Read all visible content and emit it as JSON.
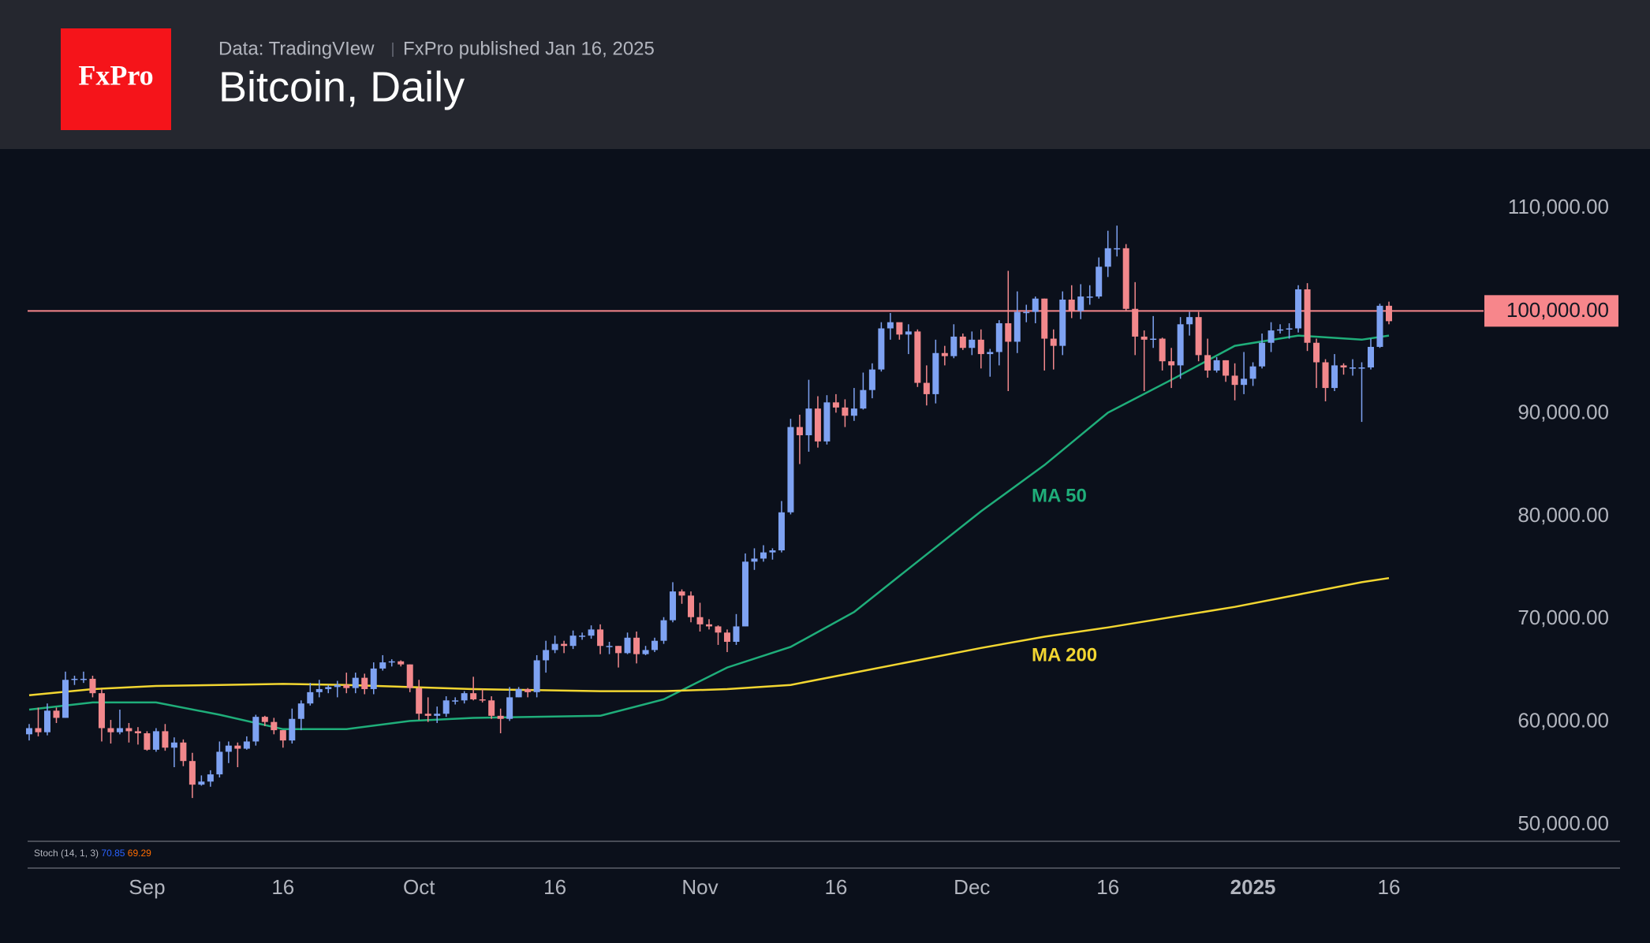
{
  "header": {
    "logo": "FxPro",
    "source": "Data: TradingVIew",
    "published": "FxPro published Jan 16, 2025",
    "title": "Bitcoin, Daily"
  },
  "chart_data": {
    "type": "candlestick",
    "up_color": "#7ea2f2",
    "down_color": "#f2888c",
    "x": [
      "2024-08-19",
      "2024-08-20",
      "2024-08-21",
      "2024-08-22",
      "2024-08-23",
      "2024-08-24",
      "2024-08-25",
      "2024-08-26",
      "2024-08-27",
      "2024-08-28",
      "2024-08-29",
      "2024-08-30",
      "2024-08-31",
      "2024-09-01",
      "2024-09-02",
      "2024-09-03",
      "2024-09-04",
      "2024-09-05",
      "2024-09-06",
      "2024-09-07",
      "2024-09-08",
      "2024-09-09",
      "2024-09-10",
      "2024-09-11",
      "2024-09-12",
      "2024-09-13",
      "2024-09-14",
      "2024-09-15",
      "2024-09-16",
      "2024-09-17",
      "2024-09-18",
      "2024-09-19",
      "2024-09-20",
      "2024-09-21",
      "2024-09-22",
      "2024-09-23",
      "2024-09-24",
      "2024-09-25",
      "2024-09-26",
      "2024-09-27",
      "2024-09-28",
      "2024-09-29",
      "2024-09-30",
      "2024-10-01",
      "2024-10-02",
      "2024-10-03",
      "2024-10-04",
      "2024-10-05",
      "2024-10-06",
      "2024-10-07",
      "2024-10-08",
      "2024-10-09",
      "2024-10-10",
      "2024-10-11",
      "2024-10-12",
      "2024-10-13",
      "2024-10-14",
      "2024-10-15",
      "2024-10-16",
      "2024-10-17",
      "2024-10-18",
      "2024-10-19",
      "2024-10-20",
      "2024-10-21",
      "2024-10-22",
      "2024-10-23",
      "2024-10-24",
      "2024-10-25",
      "2024-10-26",
      "2024-10-27",
      "2024-10-28",
      "2024-10-29",
      "2024-10-30",
      "2024-10-31",
      "2024-11-01",
      "2024-11-02",
      "2024-11-03",
      "2024-11-04",
      "2024-11-05",
      "2024-11-06",
      "2024-11-07",
      "2024-11-08",
      "2024-11-09",
      "2024-11-10",
      "2024-11-11",
      "2024-11-12",
      "2024-11-13",
      "2024-11-14",
      "2024-11-15",
      "2024-11-16",
      "2024-11-17",
      "2024-11-18",
      "2024-11-19",
      "2024-11-20",
      "2024-11-21",
      "2024-11-22",
      "2024-11-23",
      "2024-11-24",
      "2024-11-25",
      "2024-11-26",
      "2024-11-27",
      "2024-11-28",
      "2024-11-29",
      "2024-11-30",
      "2024-12-01",
      "2024-12-02",
      "2024-12-03",
      "2024-12-04",
      "2024-12-05",
      "2024-12-06",
      "2024-12-07",
      "2024-12-08",
      "2024-12-09",
      "2024-12-10",
      "2024-12-11",
      "2024-12-12",
      "2024-12-13",
      "2024-12-14",
      "2024-12-15",
      "2024-12-16",
      "2024-12-17",
      "2024-12-18",
      "2024-12-19",
      "2024-12-20",
      "2024-12-21",
      "2024-12-22",
      "2024-12-23",
      "2024-12-24",
      "2024-12-25",
      "2024-12-26",
      "2024-12-27",
      "2024-12-28",
      "2024-12-29",
      "2024-12-30",
      "2024-12-31",
      "2025-01-01",
      "2025-01-02",
      "2025-01-03",
      "2025-01-04",
      "2025-01-05",
      "2025-01-06",
      "2025-01-07",
      "2025-01-08",
      "2025-01-09",
      "2025-01-10",
      "2025-01-11",
      "2025-01-12",
      "2025-01-13",
      "2025-01-14",
      "2025-01-15",
      "2025-01-16"
    ],
    "open": [
      58800,
      59400,
      59000,
      61100,
      60400,
      64100,
      64200,
      64200,
      62800,
      59400,
      59000,
      59400,
      59100,
      58900,
      57300,
      59100,
      57500,
      58000,
      56200,
      53900,
      54200,
      54900,
      57100,
      57700,
      57400,
      58100,
      60500,
      60000,
      59200,
      58200,
      60300,
      61800,
      62900,
      63200,
      63400,
      63600,
      63300,
      64300,
      63200,
      65200,
      65800,
      65900,
      65600,
      63300,
      60800,
      60600,
      60800,
      62100,
      62100,
      62800,
      62200,
      62100,
      60600,
      60300,
      62400,
      63200,
      62900,
      66000,
      67000,
      67600,
      67400,
      68400,
      68400,
      69000,
      67400,
      67400,
      66700,
      68200,
      66600,
      67000,
      67900,
      69900,
      72700,
      72300,
      70200,
      69500,
      69300,
      68700,
      67800,
      69300,
      75600,
      75900,
      76500,
      76700,
      80400,
      88700,
      87900,
      90500,
      87300,
      91100,
      90600,
      89800,
      90500,
      92300,
      94300,
      98300,
      98900,
      97700,
      98000,
      93000,
      91900,
      95900,
      95600,
      97500,
      96400,
      97200,
      95800,
      96000,
      98800,
      97000,
      99900,
      99900,
      101200,
      97300,
      96600,
      101100,
      100000,
      101400,
      101400,
      104300,
      106100,
      106100,
      100200,
      97500,
      97200,
      97300,
      95100,
      94700,
      98700,
      99400,
      95700,
      94200,
      95200,
      93700,
      92800,
      93400,
      94600,
      96900,
      98100,
      98200,
      98300,
      102100,
      96900,
      95000,
      92500,
      94700,
      94500,
      94500,
      94500,
      96500,
      100500
    ],
    "high": [
      59800,
      61400,
      61800,
      61400,
      64900,
      64500,
      64900,
      64500,
      63200,
      60200,
      61200,
      59900,
      59500,
      59100,
      59400,
      59800,
      58500,
      58300,
      57000,
      54800,
      55300,
      58100,
      58100,
      58000,
      58600,
      60700,
      60600,
      60400,
      59200,
      61300,
      62100,
      63800,
      64100,
      63600,
      64000,
      64800,
      64800,
      64700,
      65800,
      66500,
      66100,
      66000,
      65600,
      64100,
      62400,
      61500,
      62500,
      62400,
      63000,
      64400,
      63200,
      62500,
      61300,
      63400,
      63400,
      63300,
      66500,
      67900,
      68400,
      67900,
      68900,
      68700,
      69400,
      69500,
      67800,
      67400,
      68700,
      68800,
      67400,
      68200,
      70200,
      73600,
      72900,
      72700,
      71600,
      70000,
      69400,
      69000,
      70500,
      76400,
      76900,
      77200,
      76900,
      81500,
      89500,
      89900,
      93300,
      91700,
      91800,
      91900,
      91400,
      92500,
      94000,
      94900,
      98900,
      99800,
      98800,
      98700,
      98200,
      94700,
      97200,
      96600,
      98700,
      97800,
      98000,
      98200,
      96300,
      99100,
      103900,
      101900,
      100600,
      101400,
      101200,
      98200,
      101900,
      102500,
      102600,
      102500,
      105200,
      107800,
      108300,
      106500,
      102800,
      98100,
      99500,
      97400,
      96400,
      99400,
      99900,
      99900,
      97300,
      95500,
      95200,
      94900,
      96000,
      95000,
      97800,
      98900,
      98700,
      98800,
      102500,
      102700,
      97300,
      95300,
      95800,
      94900,
      95300,
      95000,
      97300,
      100700,
      100900
    ],
    "low": [
      58200,
      58600,
      58700,
      59900,
      60400,
      63600,
      63800,
      62400,
      58100,
      57900,
      58800,
      58000,
      57800,
      57200,
      57100,
      57200,
      55600,
      55700,
      52600,
      53800,
      53700,
      54600,
      56000,
      55600,
      57300,
      57700,
      59600,
      58800,
      57500,
      57900,
      59200,
      61600,
      62400,
      62800,
      62400,
      62800,
      62800,
      62700,
      62700,
      65000,
      65400,
      65400,
      62900,
      60200,
      60000,
      59900,
      60500,
      61700,
      61800,
      62100,
      61900,
      60300,
      58900,
      60100,
      62400,
      62400,
      62400,
      64800,
      66700,
      66700,
      67100,
      68000,
      68100,
      66600,
      66600,
      65300,
      66600,
      65700,
      66500,
      66800,
      67600,
      69700,
      71500,
      69700,
      68800,
      69000,
      67500,
      66800,
      67500,
      69300,
      74800,
      75600,
      75800,
      76500,
      80200,
      85100,
      86300,
      86700,
      87000,
      90100,
      88700,
      89300,
      90400,
      91500,
      94100,
      97200,
      97200,
      95800,
      92600,
      90800,
      91000,
      94700,
      95400,
      96200,
      95700,
      94400,
      93600,
      94700,
      92200,
      95900,
      98900,
      98800,
      94200,
      94300,
      95700,
      99300,
      99200,
      100600,
      101200,
      103300,
      105300,
      100000,
      95700,
      92200,
      96400,
      94200,
      92500,
      93400,
      97600,
      95100,
      93500,
      94000,
      93100,
      91300,
      91900,
      92700,
      94400,
      96000,
      97800,
      97300,
      97900,
      96100,
      92500,
      91200,
      92200,
      93800,
      93700,
      89200,
      94300,
      96400,
      98700
    ],
    "close": [
      59400,
      59000,
      61100,
      60400,
      64100,
      64200,
      64200,
      62800,
      59400,
      59000,
      59400,
      59100,
      58900,
      57300,
      59100,
      57500,
      58000,
      56200,
      53900,
      54200,
      54900,
      57100,
      57700,
      57400,
      58100,
      60500,
      60000,
      59200,
      58200,
      60300,
      61800,
      62900,
      63200,
      63400,
      63600,
      63300,
      64300,
      63200,
      65200,
      65800,
      65900,
      65600,
      63300,
      60800,
      60600,
      60800,
      62100,
      62100,
      62800,
      62200,
      62100,
      60600,
      60300,
      62400,
      63200,
      62900,
      66000,
      67000,
      67600,
      67400,
      68400,
      68400,
      69000,
      67400,
      67400,
      66700,
      68200,
      66600,
      67000,
      67900,
      69900,
      72700,
      72300,
      70200,
      69500,
      69300,
      68700,
      67800,
      69300,
      75600,
      75900,
      76500,
      76700,
      80400,
      88700,
      87900,
      90500,
      87300,
      91100,
      90600,
      89800,
      90500,
      92300,
      94300,
      98300,
      98900,
      97700,
      98000,
      93000,
      91900,
      95900,
      95600,
      97500,
      96400,
      97200,
      95800,
      96000,
      98800,
      97000,
      99900,
      99900,
      101200,
      97300,
      96600,
      101100,
      100000,
      101400,
      101400,
      104300,
      106100,
      106100,
      100200,
      97500,
      97200,
      97300,
      95100,
      94700,
      98700,
      99400,
      95700,
      94200,
      95200,
      93700,
      92800,
      93400,
      94600,
      96900,
      98100,
      98200,
      98300,
      102100,
      96900,
      95000,
      92500,
      94700,
      94500,
      94500,
      94500,
      96500,
      100500,
      99000
    ],
    "series": [
      {
        "name": "MA 50",
        "color": "#1fae7a",
        "x": [
          "2024-08-19",
          "2024-08-26",
          "2024-09-02",
          "2024-09-09",
          "2024-09-16",
          "2024-09-23",
          "2024-09-30",
          "2024-10-07",
          "2024-10-14",
          "2024-10-21",
          "2024-10-28",
          "2024-11-04",
          "2024-11-11",
          "2024-11-18",
          "2024-11-25",
          "2024-12-02",
          "2024-12-09",
          "2024-12-16",
          "2024-12-23",
          "2024-12-30",
          "2025-01-06",
          "2025-01-13",
          "2025-01-16"
        ],
        "values": [
          61200,
          61900,
          61900,
          60700,
          59300,
          59300,
          60100,
          60400,
          60500,
          60600,
          62200,
          65300,
          67300,
          70700,
          75600,
          80500,
          85000,
          90100,
          93300,
          96600,
          97600,
          97200,
          97600
        ]
      },
      {
        "name": "MA 200",
        "color": "#f2d631",
        "x": [
          "2024-08-19",
          "2024-08-26",
          "2024-09-02",
          "2024-09-09",
          "2024-09-16",
          "2024-09-23",
          "2024-09-30",
          "2024-10-07",
          "2024-10-14",
          "2024-10-21",
          "2024-10-28",
          "2024-11-04",
          "2024-11-11",
          "2024-11-18",
          "2024-11-25",
          "2024-12-02",
          "2024-12-09",
          "2024-12-16",
          "2024-12-23",
          "2024-12-30",
          "2025-01-06",
          "2025-01-13",
          "2025-01-16"
        ],
        "values": [
          62600,
          63200,
          63500,
          63600,
          63700,
          63600,
          63400,
          63200,
          63100,
          63000,
          63000,
          63200,
          63600,
          64800,
          66000,
          67200,
          68300,
          69200,
          70200,
          71200,
          72400,
          73600,
          74000
        ]
      }
    ],
    "hline": {
      "value": 100000,
      "label": "100,000.00",
      "color": "#f7868b"
    },
    "xlim": [
      "2024-08-19",
      "2025-01-16"
    ],
    "xticks": [
      {
        "value": "2024-09-01",
        "label": "Sep"
      },
      {
        "value": "2024-09-16",
        "label": "16"
      },
      {
        "value": "2024-10-01",
        "label": "Oct"
      },
      {
        "value": "2024-10-16",
        "label": "16"
      },
      {
        "value": "2024-11-01",
        "label": "Nov"
      },
      {
        "value": "2024-11-16",
        "label": "16"
      },
      {
        "value": "2024-12-01",
        "label": "Dec"
      },
      {
        "value": "2024-12-16",
        "label": "16"
      },
      {
        "value": "2025-01-01",
        "label": "2025"
      },
      {
        "value": "2025-01-16",
        "label": "16"
      }
    ],
    "ylim": [
      50000,
      110000
    ],
    "yticks": [
      {
        "value": 50000,
        "label": "50,000.00"
      },
      {
        "value": 60000,
        "label": "60,000.00"
      },
      {
        "value": 70000,
        "label": "70,000.00"
      },
      {
        "value": 80000,
        "label": "80,000.00"
      },
      {
        "value": 90000,
        "label": "90,000.00"
      },
      {
        "value": 110000,
        "label": "110,000.00"
      }
    ],
    "indicator": {
      "name": "Stoch (14, 1, 3)",
      "k": "70.85",
      "d": "69.29",
      "k_color": "#2962ff",
      "d_color": "#ff6d00"
    }
  }
}
